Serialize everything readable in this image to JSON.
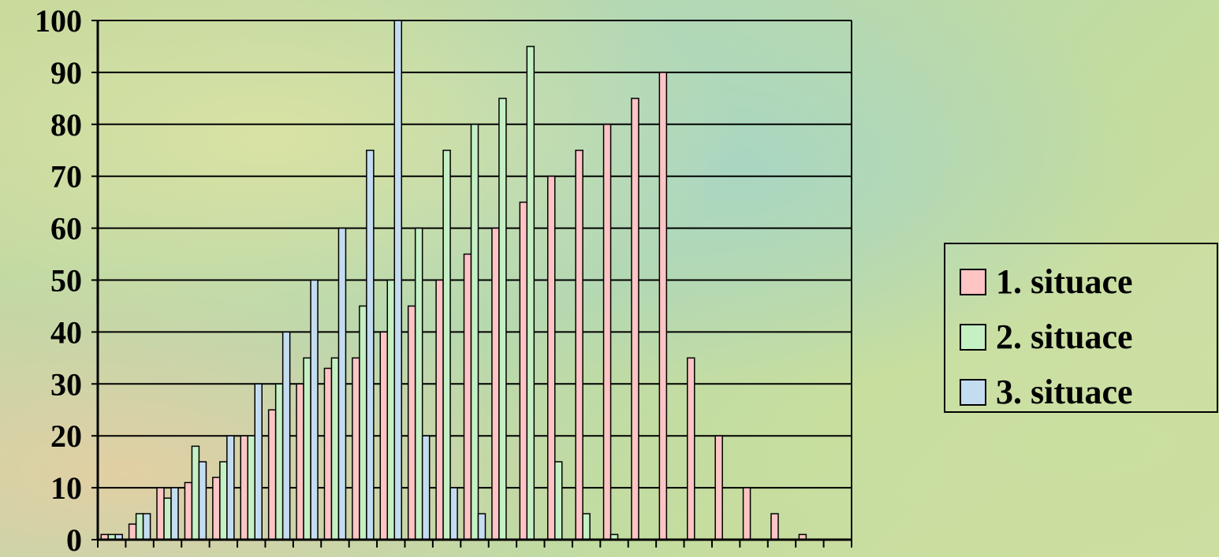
{
  "chart_data": {
    "type": "bar",
    "categories": [
      "",
      "",
      "",
      "",
      "",
      "",
      "",
      "",
      "",
      "",
      "",
      "",
      "",
      "",
      "",
      "",
      "",
      "",
      "",
      "",
      "",
      "",
      "",
      "",
      "",
      "",
      ""
    ],
    "series": [
      {
        "name": "1. situace",
        "color": "#ffc4c4",
        "values": [
          1,
          3,
          10,
          11,
          12,
          20,
          25,
          30,
          33,
          35,
          40,
          45,
          50,
          55,
          60,
          65,
          70,
          75,
          80,
          85,
          90,
          35,
          20,
          10,
          5,
          1,
          0
        ]
      },
      {
        "name": "2. situace",
        "color": "#c4f0c4",
        "values": [
          1,
          5,
          8,
          18,
          15,
          20,
          30,
          35,
          35,
          45,
          50,
          60,
          75,
          80,
          85,
          95,
          15,
          5,
          1,
          0,
          0,
          0,
          0,
          0,
          0,
          0,
          0
        ]
      },
      {
        "name": "3. situace",
        "color": "#c4dcf0",
        "values": [
          1,
          5,
          10,
          15,
          20,
          30,
          40,
          50,
          60,
          75,
          100,
          20,
          10,
          5,
          0,
          0,
          0,
          0,
          0,
          0,
          0,
          0,
          0,
          0,
          0,
          0,
          0
        ]
      }
    ],
    "y_ticks": [
      "0",
      "10",
      "20",
      "30",
      "40",
      "50",
      "60",
      "70",
      "80",
      "90",
      "100"
    ],
    "ylim": [
      0,
      100
    ],
    "grid": true,
    "legend_position": "right"
  }
}
